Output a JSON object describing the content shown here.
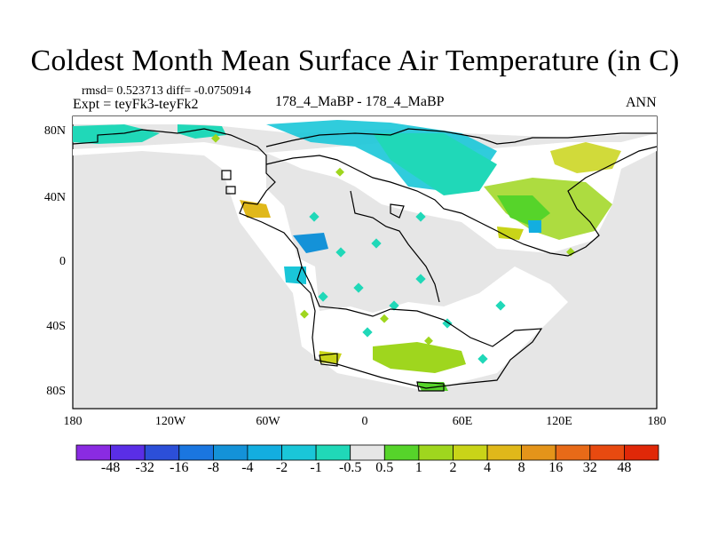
{
  "title": "Coldest Month Mean Surface Air Temperature (in C)",
  "stats": "rmsd= 0.523713 diff= -0.0750914",
  "experiment": "Expt = teyFk3-teyFk2",
  "period_label": "178_4_MaBP - 178_4_MaBP",
  "season": "ANN",
  "map": {
    "x_tick_labels": [
      "180",
      "120W",
      "60W",
      "0",
      "60E",
      "120E",
      "180"
    ],
    "y_tick_labels": [
      "80N",
      "40N",
      "0",
      "40S",
      "80S"
    ],
    "background_color": "#e6e6e6",
    "land_outline_color": "#000000"
  },
  "colorbar": {
    "labels": [
      "-48",
      "-32",
      "-16",
      "-8",
      "-4",
      "-2",
      "-1",
      "-0.5",
      "0.5",
      "1",
      "2",
      "4",
      "8",
      "16",
      "32",
      "48"
    ],
    "colors": [
      "#8a2be2",
      "#5a2ee6",
      "#2c4fd8",
      "#1a76e0",
      "#1492d8",
      "#13aee0",
      "#1ac6d8",
      "#20d8b8",
      "#e6e6e6",
      "#56d42a",
      "#9fd61e",
      "#c9d418",
      "#e0b81a",
      "#e4941a",
      "#e86a18",
      "#e84a10",
      "#e02808"
    ]
  }
}
